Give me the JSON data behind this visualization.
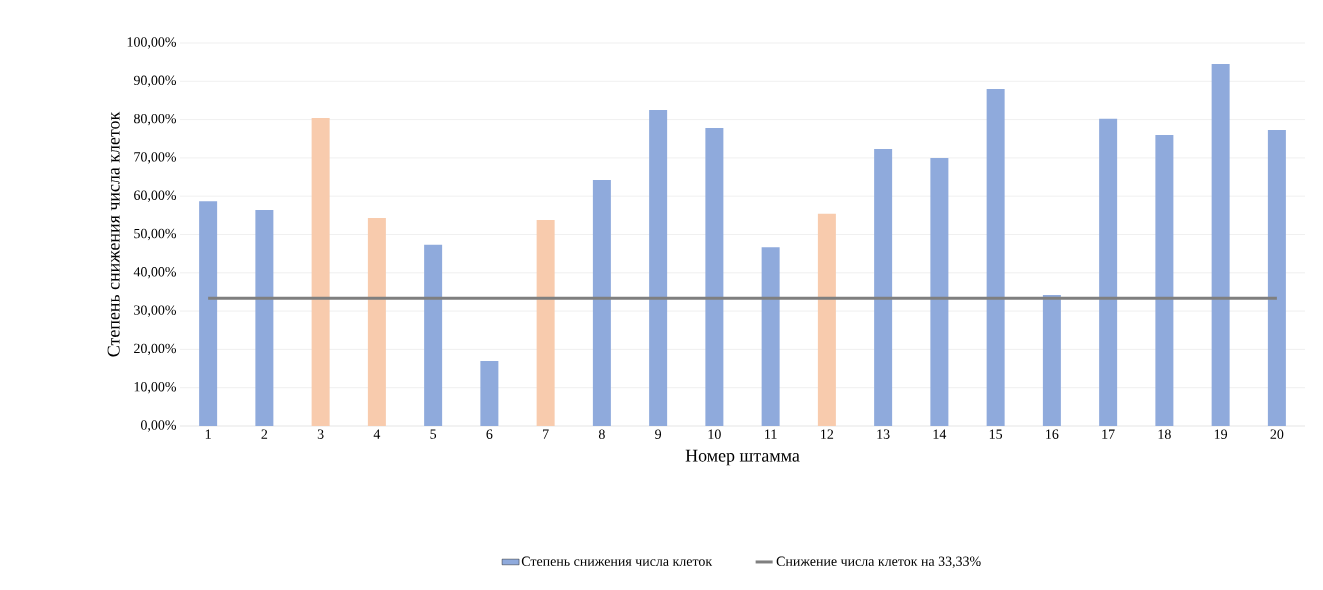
{
  "chart_data": {
    "type": "bar",
    "xlabel": "Номер штамма",
    "ylabel": "Степень снижения числа клеток",
    "categories": [
      "1",
      "2",
      "3",
      "4",
      "5",
      "6",
      "7",
      "8",
      "9",
      "10",
      "11",
      "12",
      "13",
      "14",
      "15",
      "16",
      "17",
      "18",
      "19",
      "20"
    ],
    "series": [
      {
        "name": "Степень снижения числа клеток",
        "colors": [
          "#8faadc",
          "#8faadc",
          "#f8cbad",
          "#f8cbad",
          "#8faadc",
          "#8faadc",
          "#f8cbad",
          "#8faadc",
          "#8faadc",
          "#8faadc",
          "#8faadc",
          "#f8cbad",
          "#8faadc",
          "#8faadc",
          "#8faadc",
          "#8faadc",
          "#8faadc",
          "#8faadc",
          "#8faadc",
          "#8faadc"
        ],
        "values": [
          58.7,
          56.4,
          80.4,
          54.3,
          47.3,
          17.0,
          53.8,
          64.2,
          82.5,
          77.8,
          46.7,
          55.4,
          72.3,
          70.0,
          88.0,
          34.2,
          80.2,
          76.0,
          94.5,
          77.3
        ]
      },
      {
        "name": "Снижение числа клеток на 33,33%",
        "type": "line",
        "color": "#7f7f7f",
        "values": [
          33.33,
          33.33,
          33.33,
          33.33,
          33.33,
          33.33,
          33.33,
          33.33,
          33.33,
          33.33,
          33.33,
          33.33,
          33.33,
          33.33,
          33.33,
          33.33,
          33.33,
          33.33,
          33.33,
          33.33
        ]
      }
    ],
    "ylim": [
      0,
      100
    ],
    "yticks": [
      {
        "value": 0,
        "label": "0,00%"
      },
      {
        "value": 10,
        "label": "10,00%"
      },
      {
        "value": 20,
        "label": "20,00%"
      },
      {
        "value": 30,
        "label": "30,00%"
      },
      {
        "value": 40,
        "label": "40,00%"
      },
      {
        "value": 50,
        "label": "50,00%"
      },
      {
        "value": 60,
        "label": "60,00%"
      },
      {
        "value": 70,
        "label": "70,00%"
      },
      {
        "value": 80,
        "label": "80,00%"
      },
      {
        "value": 90,
        "label": "90,00%"
      },
      {
        "value": 100,
        "label": "100,00%"
      }
    ],
    "grid": "y",
    "legend": "bottom"
  }
}
